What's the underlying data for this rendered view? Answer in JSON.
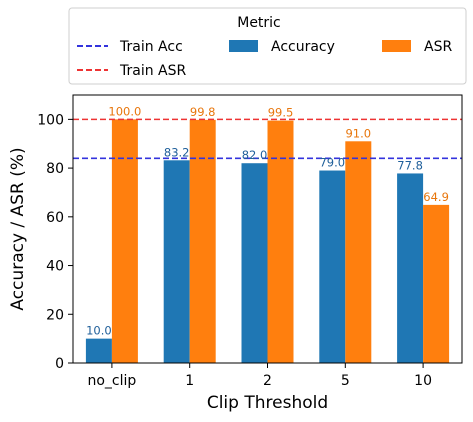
{
  "chart_data": {
    "type": "bar",
    "title": "",
    "xlabel": "Clip Threshold",
    "ylabel": "Accuracy / ASR (%)",
    "categories": [
      "no_clip",
      "1",
      "2",
      "5",
      "10"
    ],
    "ylim": [
      0,
      110
    ],
    "yticks": [
      0,
      20,
      40,
      60,
      80,
      100
    ],
    "grid": false,
    "series": [
      {
        "name": "Accuracy",
        "color": "#1f77b4",
        "values": [
          10.0,
          83.2,
          82.0,
          79.0,
          77.8
        ],
        "labels": [
          "10.0",
          "83.2",
          "82.0",
          "79.0",
          "77.8"
        ]
      },
      {
        "name": "ASR",
        "color": "#ff7f0e",
        "values": [
          100.0,
          99.8,
          99.5,
          91.0,
          64.9
        ],
        "labels": [
          "100.0",
          "99.8",
          "99.5",
          "91.0",
          "64.9"
        ]
      }
    ],
    "reference_lines": [
      {
        "name": "Train Acc",
        "value": 84.0,
        "color": "#3333dd",
        "style": "dashed"
      },
      {
        "name": "Train ASR",
        "value": 100.0,
        "color": "#ee3333",
        "style": "dashed"
      }
    ],
    "legend": {
      "title": "Metric",
      "placement": "above",
      "entries": [
        "Train Acc",
        "Accuracy",
        "ASR",
        "Train ASR"
      ]
    }
  }
}
